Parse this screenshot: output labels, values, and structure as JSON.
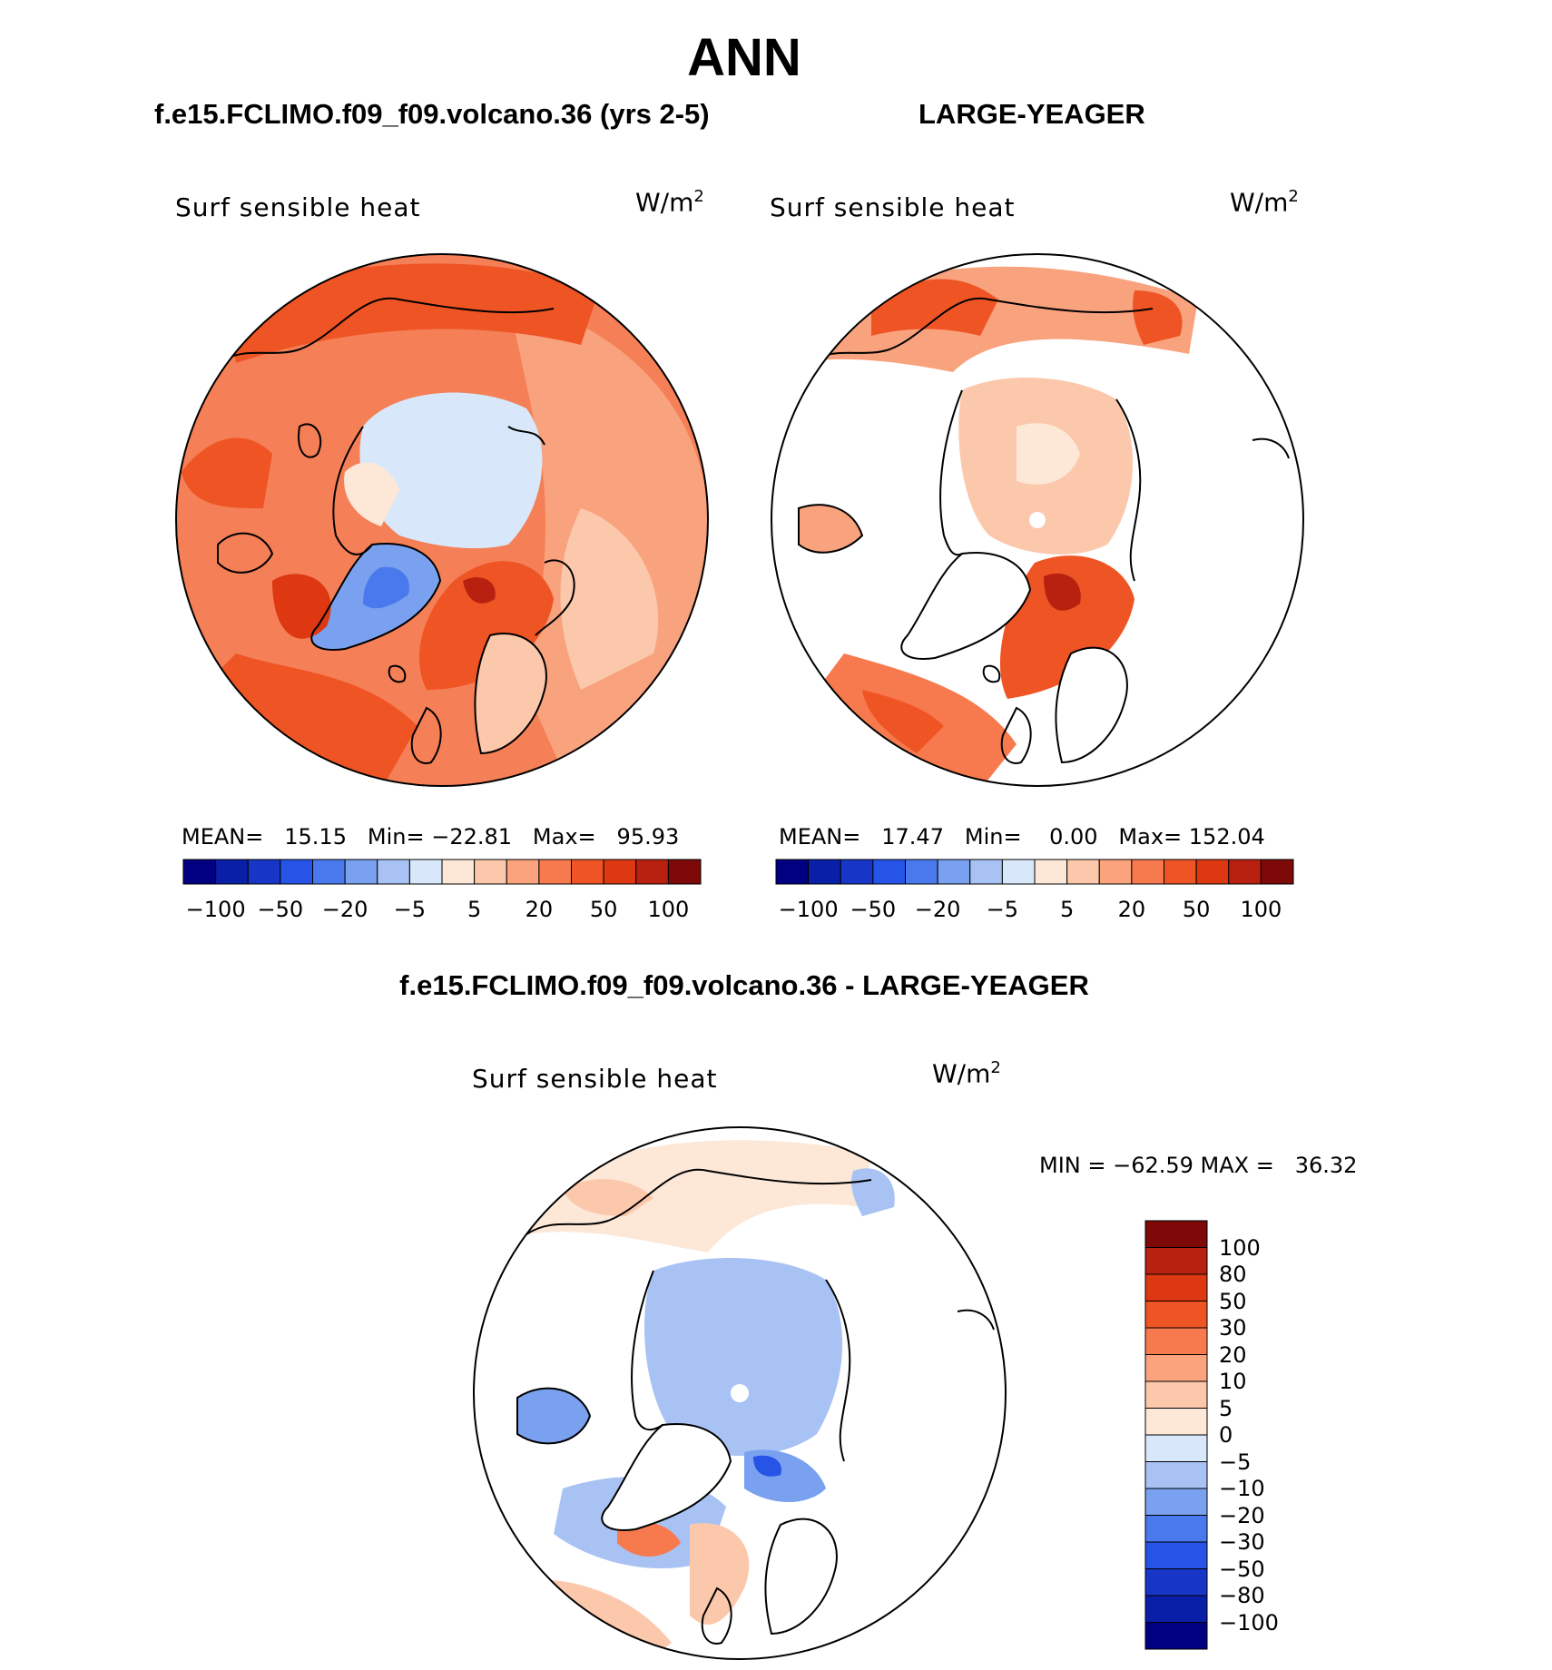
{
  "title": "ANN",
  "panels": [
    {
      "case": "f.e15.FCLIMO.f09_f09.volcano.36 (yrs 2-5)",
      "variable": "Surf sensible heat",
      "units": "W/m",
      "units_exp": "2",
      "stats": {
        "mean_label": "MEAN=",
        "mean": "15.15",
        "min_label": "Min=",
        "min": "−22.81",
        "max_label": "Max=",
        "max": "95.93"
      }
    },
    {
      "case": "LARGE-YEAGER",
      "variable": "Surf sensible heat",
      "units": "W/m",
      "units_exp": "2",
      "stats": {
        "mean_label": "MEAN=",
        "mean": "17.47",
        "min_label": "Min=",
        "min": "0.00",
        "max_label": "Max=",
        "max": "152.04"
      }
    }
  ],
  "colorbar_top": {
    "colors": [
      "#000080",
      "#0a1fa8",
      "#1736c8",
      "#2654e6",
      "#4a79ee",
      "#7aa0f0",
      "#a9c2f4",
      "#d8e8fa",
      "#fde8d8",
      "#fcc8ac",
      "#fba37c",
      "#f77a4e",
      "#ef5424",
      "#dd3812",
      "#b82110",
      "#7d0a08"
    ],
    "labels": [
      "−100",
      "−50",
      "−20",
      "−5",
      "5",
      "20",
      "50",
      "100"
    ]
  },
  "difference": {
    "title": "f.e15.FCLIMO.f09_f09.volcano.36 - LARGE-YEAGER",
    "variable": "Surf sensible heat",
    "units": "W/m",
    "units_exp": "2",
    "minmax": "MIN = −62.59 MAX =   36.32",
    "colorbar": {
      "colors": [
        "#7d0a08",
        "#b82110",
        "#dd3812",
        "#ef5424",
        "#f77a4e",
        "#fba37c",
        "#fcc8ac",
        "#fde8d8",
        "#d8e8fa",
        "#a9c2f4",
        "#7aa0f0",
        "#4a79ee",
        "#2654e6",
        "#1736c8",
        "#0a1fa8",
        "#000080"
      ],
      "labels": [
        "100",
        "80",
        "50",
        "30",
        "20",
        "10",
        "5",
        "0",
        "−5",
        "−10",
        "−20",
        "−30",
        "−50",
        "−80",
        "−100"
      ]
    }
  }
}
